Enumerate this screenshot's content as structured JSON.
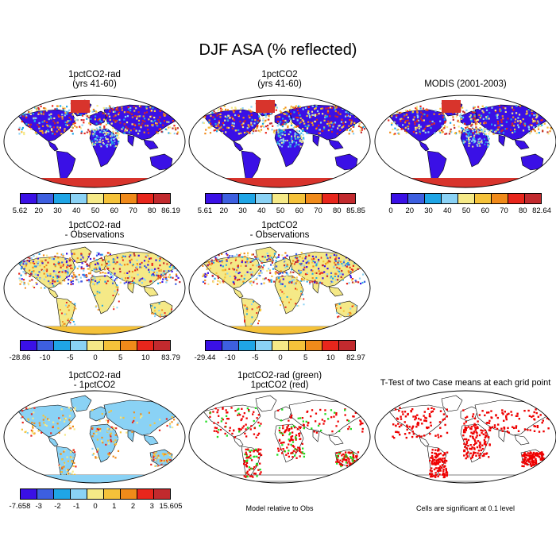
{
  "title": "DJF ASA (% reflected)",
  "panels": [
    {
      "title1": "1pctCO2-rad",
      "title2": "(yrs 41-60)",
      "type": "abs",
      "labels": [
        "5.62",
        "20",
        "30",
        "40",
        "50",
        "60",
        "70",
        "80",
        "86.19"
      ]
    },
    {
      "title1": "1pctCO2",
      "title2": "(yrs 41-60)",
      "type": "abs",
      "labels": [
        "5.61",
        "20",
        "30",
        "40",
        "50",
        "60",
        "70",
        "80",
        "85.85"
      ]
    },
    {
      "title1": "MODIS (2001-2003)",
      "title2": "",
      "type": "abs",
      "labels": [
        "0",
        "20",
        "30",
        "40",
        "50",
        "60",
        "70",
        "80",
        "82.64"
      ]
    },
    {
      "title1": "1pctCO2-rad",
      "title2": "- Observations",
      "type": "diff",
      "labels": [
        "-28.86",
        "-10",
        "-5",
        "0",
        "5",
        "10",
        "83.79"
      ]
    },
    {
      "title1": "1pctCO2",
      "title2": "- Observations",
      "type": "diff",
      "labels": [
        "-29.44",
        "-10",
        "-5",
        "0",
        "5",
        "10",
        "82.97"
      ]
    },
    {
      "title1": "1pctCO2-rad",
      "title2": "- 1pctCO2",
      "type": "diff2",
      "labels": [
        "-7.658",
        "-3",
        "-2",
        "-1",
        "0",
        "1",
        "2",
        "3",
        "15.605"
      ]
    },
    {
      "title1": "1pctCO2-rad (green)",
      "title2": "1pctCO2 (red)",
      "type": "compare",
      "note": "Model relative to Obs"
    },
    {
      "title1": "T-Test of two Case means at each grid point",
      "title2": "",
      "type": "ttest",
      "note": "Cells are significant at 0.1 level"
    }
  ],
  "palettes": {
    "abs": [
      "#3a10e6",
      "#3d5fe0",
      "#1fa5e6",
      "#8ad2f5",
      "#f5e987",
      "#f5c23a",
      "#f08a1a",
      "#e8261c",
      "#c22a2e"
    ],
    "diff": [
      "#3a10e6",
      "#3d5fe0",
      "#1fa5e6",
      "#8ad2f5",
      "#f5e987",
      "#f5c23a",
      "#f08a1a",
      "#e8261c",
      "#c22a2e"
    ],
    "diff2": [
      "#3a10e6",
      "#3d5fe0",
      "#1fa5e6",
      "#8ad2f5",
      "#f5e987",
      "#f5c23a",
      "#f08a1a",
      "#e8261c",
      "#c22a2e"
    ]
  }
}
